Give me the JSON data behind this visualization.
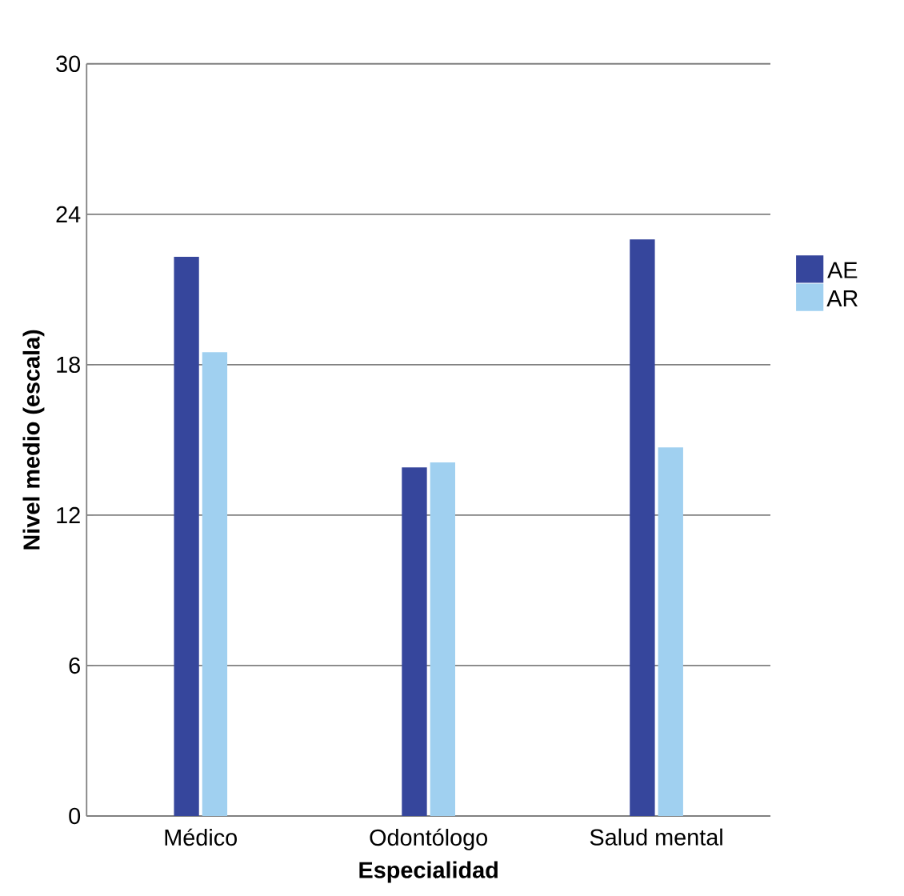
{
  "chart_data": {
    "type": "bar",
    "xlabel": "Especialidad",
    "ylabel": "Nivel medio (escala)",
    "categories": [
      "Médico",
      "Odontólogo",
      "Salud mental"
    ],
    "series": [
      {
        "name": "AE",
        "color": "#36469c",
        "values": [
          22.3,
          13.9,
          23.0
        ]
      },
      {
        "name": "AR",
        "color": "#a0d0f0",
        "values": [
          18.5,
          14.1,
          14.7
        ]
      }
    ],
    "ylim": [
      0,
      30
    ],
    "yticks": [
      0,
      6,
      12,
      18,
      24,
      30
    ],
    "grid": "y",
    "legend": "right"
  }
}
